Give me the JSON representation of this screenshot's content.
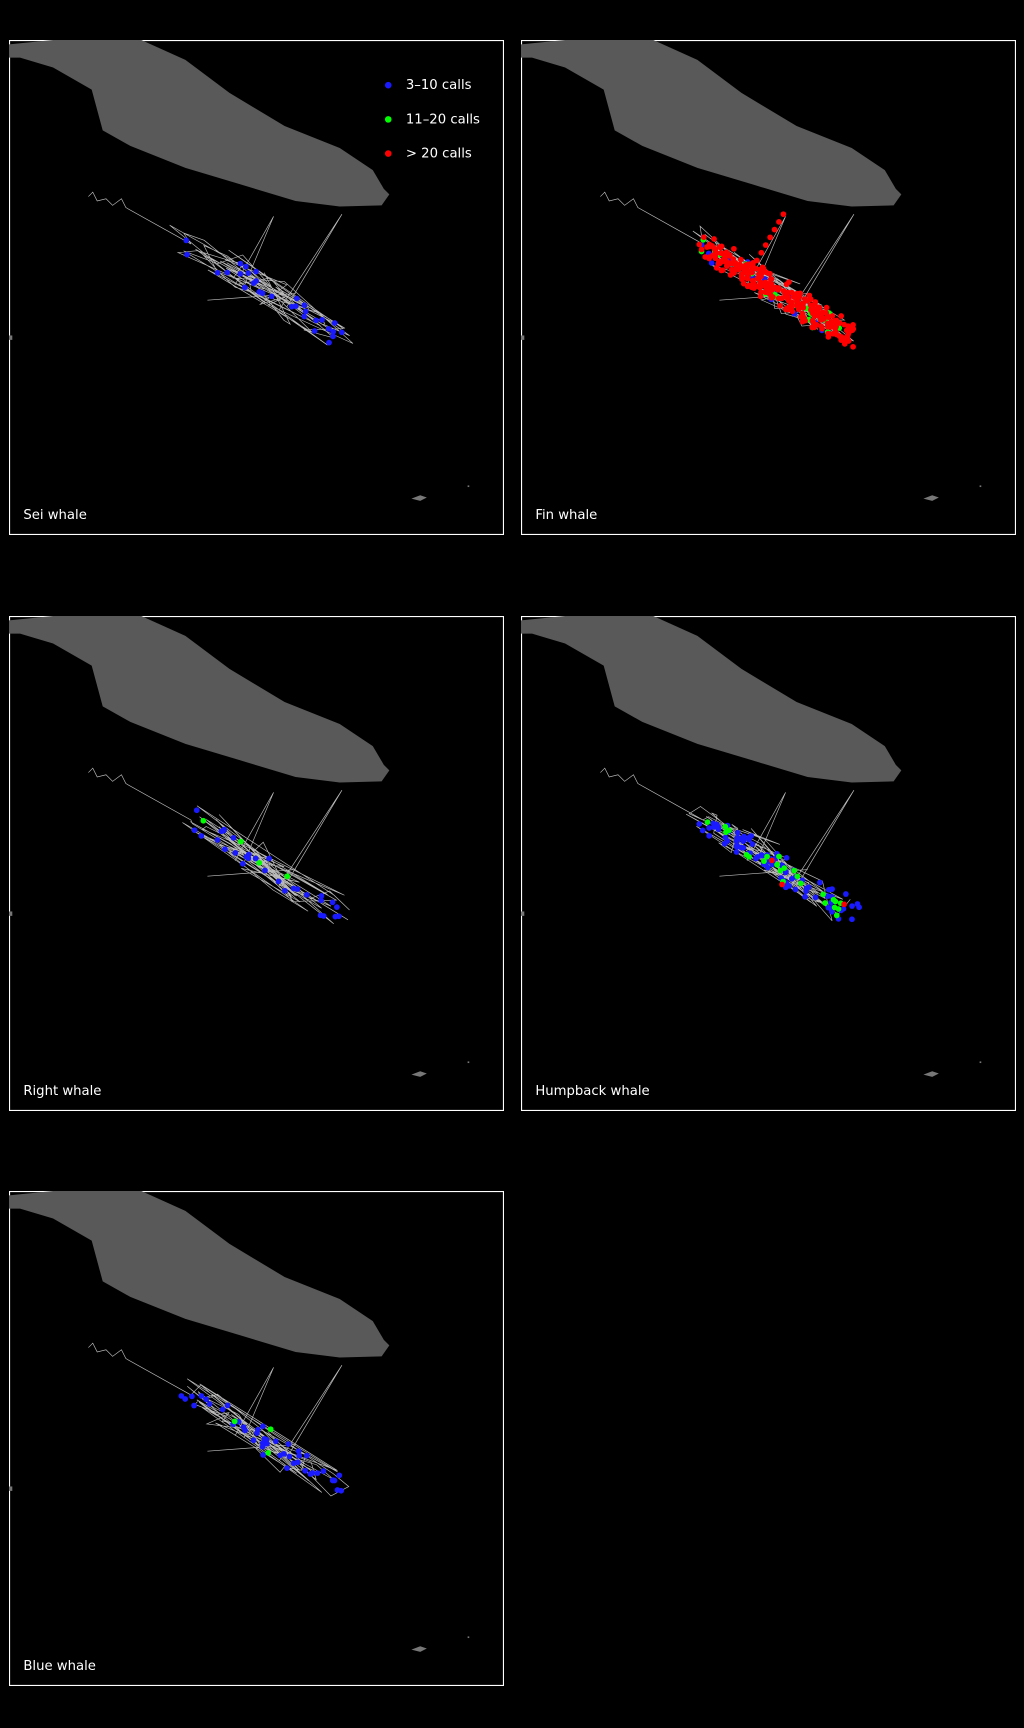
{
  "legend": {
    "items": [
      "3–10 calls",
      "11–20 calls",
      "> 20 calls"
    ]
  },
  "panels": [
    {
      "label": "Sei whale"
    },
    {
      "label": "Fin whale"
    },
    {
      "label": "Right whale"
    },
    {
      "label": "Humpback whale"
    },
    {
      "label": "Blue whale"
    }
  ]
}
